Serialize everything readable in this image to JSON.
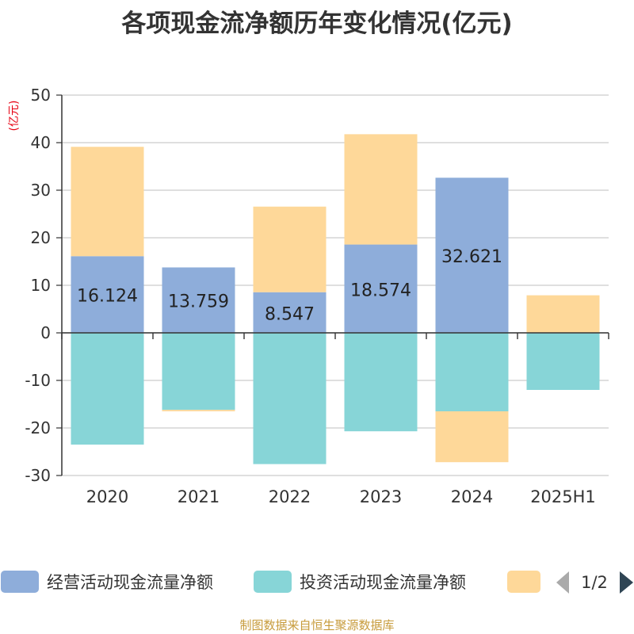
{
  "title": "各项现金流净额历年变化情况(亿元)",
  "ylabel": "(亿元)",
  "footer": "制图数据来自恒生聚源数据库",
  "legend": {
    "page": "1/2",
    "items": [
      {
        "label": "经营活动现金流量净额",
        "color": "#8eadda"
      },
      {
        "label": "投资活动现金流量净额",
        "color": "#87d5d7"
      },
      {
        "label": "",
        "color": "#fed899"
      }
    ]
  },
  "colors": {
    "operating": "#8eadda",
    "investing": "#87d5d7",
    "financing": "#fed899",
    "ylabel": "#e60012",
    "footer": "#c79b3b",
    "pager_prev": "#aaaaaa",
    "pager_next": "#2f4554"
  },
  "chart_data": {
    "type": "bar",
    "stacked": true,
    "categories": [
      "2020",
      "2021",
      "2022",
      "2023",
      "2024",
      "2025H1"
    ],
    "ylim": [
      -30,
      50
    ],
    "yticks": [
      50,
      40,
      30,
      20,
      10,
      0,
      -10,
      -20,
      -30
    ],
    "grid": true,
    "legend_position": "bottom",
    "series": [
      {
        "name": "经营活动现金流量净额",
        "values": [
          16.124,
          13.759,
          8.547,
          18.574,
          32.621,
          -0.1
        ],
        "labels": [
          "16.124",
          "13.759",
          "8.547",
          "18.574",
          "32.621",
          ""
        ]
      },
      {
        "name": "投资活动现金流量净额",
        "values": [
          -23.5,
          -16.2,
          -27.6,
          -20.7,
          -16.5,
          -11.9
        ]
      },
      {
        "name": "",
        "values": [
          23.0,
          -0.3,
          18.0,
          23.2,
          -10.7,
          7.9
        ]
      }
    ]
  }
}
